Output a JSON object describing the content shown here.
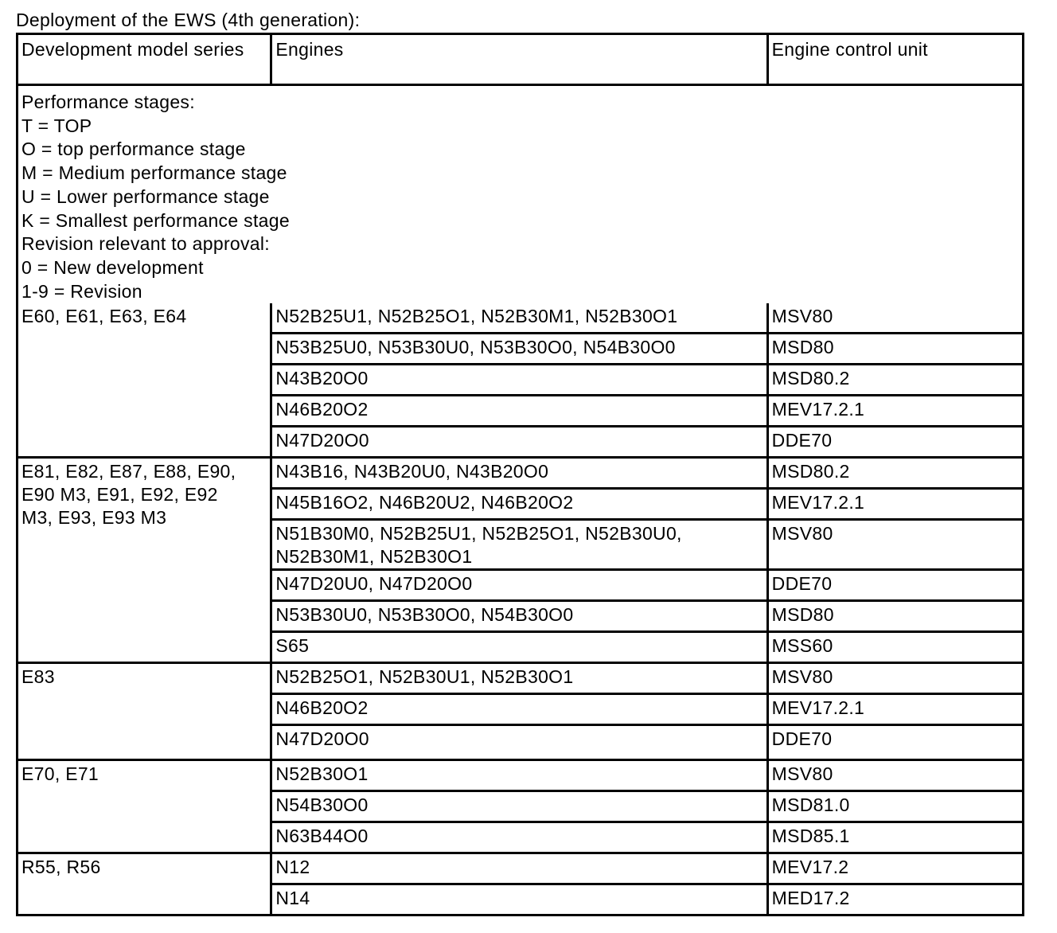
{
  "caption": "Deployment of the EWS (4th generation):",
  "headers": [
    "Development model series",
    "Engines",
    "Engine control unit"
  ],
  "legend": [
    "Performance stages:",
    "T = TOP",
    "O = top performance stage",
    "M = Medium performance stage",
    "U = Lower performance stage",
    "K = Smallest performance stage",
    "Revision relevant to approval:",
    "0 = New development",
    "1-9 = Revision"
  ],
  "groups": [
    {
      "series": "E60, E61, E63, E64",
      "rows": [
        [
          "N52B25U1, N52B25O1, N52B30M1, N52B30O1",
          "MSV80"
        ],
        [
          "N53B25U0, N53B30U0, N53B30O0, N54B30O0",
          "MSD80"
        ],
        [
          "N43B20O0",
          "MSD80.2"
        ],
        [
          "N46B20O2",
          "MEV17.2.1"
        ],
        [
          "N47D20O0",
          "DDE70"
        ]
      ]
    },
    {
      "series": "E81, E82, E87, E88, E90, E90 M3, E91, E92, E92 M3, E93, E93 M3",
      "rows": [
        [
          "N43B16, N43B20U0, N43B20O0",
          "MSD80.2"
        ],
        [
          "N45B16O2, N46B20U2, N46B20O2",
          "MEV17.2.1"
        ],
        [
          "N51B30M0, N52B25U1, N52B25O1, N52B30U0, N52B30M1, N52B30O1",
          "MSV80"
        ],
        [
          "N47D20U0, N47D20O0",
          "DDE70"
        ],
        [
          "N53B30U0, N53B30O0, N54B30O0",
          "MSD80"
        ],
        [
          "S65",
          "MSS60"
        ]
      ]
    },
    {
      "series": "E83",
      "rows": [
        [
          "N52B25O1, N52B30U1, N52B30O1",
          "MSV80"
        ],
        [
          "N46B20O2",
          "MEV17.2.1"
        ],
        [
          "N47D20O0",
          "DDE70"
        ]
      ]
    },
    {
      "series": "E70, E71",
      "rows": [
        [
          "N52B30O1",
          "MSV80"
        ],
        [
          "N54B30O0",
          "MSD81.0"
        ],
        [
          "N63B44O0",
          "MSD85.1"
        ]
      ]
    },
    {
      "series": "R55, R56",
      "rows": [
        [
          "N12",
          "MEV17.2"
        ],
        [
          "N14",
          "MED17.2"
        ]
      ]
    }
  ]
}
